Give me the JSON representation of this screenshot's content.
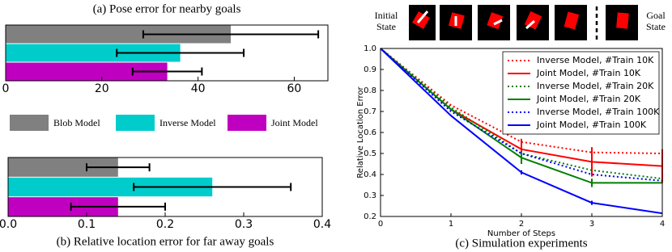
{
  "chart_data": [
    {
      "type": "hbar",
      "title": "(a) Pose error for nearby goals",
      "categories": [
        "Blob Model",
        "Inverse Model",
        "Joint Model"
      ],
      "colors": [
        "#808080",
        "#00cccc",
        "#c000c0"
      ],
      "values": [
        46.8,
        36.3,
        33.6
      ],
      "errors": [
        18.2,
        13.2,
        7.2
      ],
      "xlim": [
        0,
        67
      ],
      "xticks": [
        0,
        20,
        40,
        60
      ]
    },
    {
      "type": "hbar",
      "title": "(b) Relative location error for far away goals",
      "colors": [
        "#808080",
        "#00cccc",
        "#c000c0"
      ],
      "values": [
        0.14,
        0.26,
        0.14
      ],
      "errors": [
        0.04,
        0.1,
        0.06
      ],
      "xlim": [
        0,
        0.4
      ],
      "xticks": [
        {
          "value": 0,
          "label": "0.0"
        },
        0.1,
        0.2,
        0.3,
        0.4
      ]
    },
    {
      "type": "line",
      "title": "(c) Simulation experiments",
      "annotations": [
        "Initial State",
        "Goal State"
      ],
      "x_label": "Number of Steps",
      "y_label": "Relative Location Error",
      "x": [
        0,
        1,
        2,
        3,
        4
      ],
      "series": [
        {
          "name": "Inverse Model, #Train 10K",
          "color": "#ff0000",
          "linestyle": "dotted",
          "values": [
            1.0,
            0.73,
            0.555,
            0.505,
            0.5
          ]
        },
        {
          "name": "Joint Model, #Train 10K",
          "color": "#ff0000",
          "linestyle": "solid",
          "values": [
            1.0,
            0.71,
            0.52,
            0.46,
            0.44
          ],
          "errors": [
            null,
            null,
            0.05,
            0.07,
            0.08
          ]
        },
        {
          "name": "Inverse Model, #Train 20K",
          "color": "#008000",
          "linestyle": "dotted",
          "values": [
            1.0,
            0.72,
            0.5,
            0.42,
            0.38
          ]
        },
        {
          "name": "Joint Model, #Train 20K",
          "color": "#008000",
          "linestyle": "solid",
          "values": [
            1.0,
            0.71,
            0.48,
            0.36,
            0.36
          ],
          "errors": [
            null,
            null,
            0.03,
            0.02,
            null
          ]
        },
        {
          "name": "Inverse Model, #Train 100K",
          "color": "#0000ff",
          "linestyle": "dotted",
          "values": [
            1.0,
            0.7,
            0.5,
            0.4,
            0.37
          ]
        },
        {
          "name": "Joint Model, #Train 100K",
          "color": "#0000ff",
          "linestyle": "solid",
          "values": [
            1.0,
            0.68,
            0.41,
            0.265,
            0.215
          ],
          "errors": [
            null,
            null,
            0.01,
            0.01,
            null
          ]
        }
      ],
      "xlim": [
        0,
        4
      ],
      "xticks": [
        0,
        1,
        2,
        3,
        4
      ],
      "ylim": [
        0.2,
        1.0
      ],
      "yticks": [
        0.2,
        0.3,
        0.4,
        0.5,
        0.6,
        0.7,
        0.8,
        0.9,
        {
          "value": 1.0,
          "label": "1.0"
        }
      ],
      "legend": "upper right"
    }
  ]
}
